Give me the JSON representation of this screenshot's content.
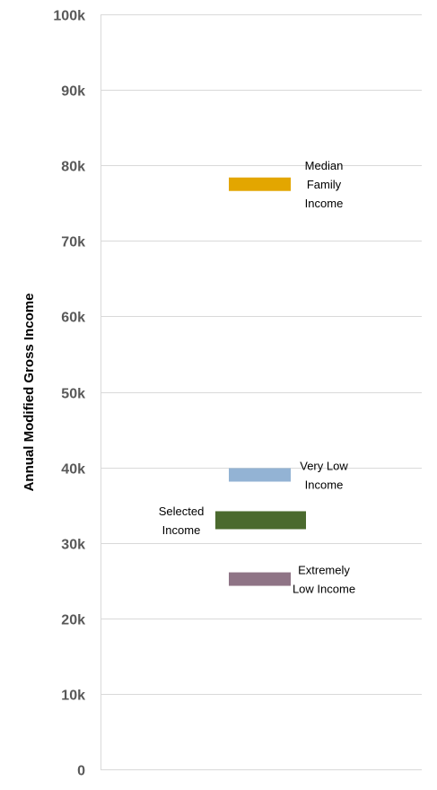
{
  "chart_data": {
    "type": "bar",
    "ylabel": "Annual Modified Gross Income",
    "ylim": [
      0,
      100000
    ],
    "y_ticks": [
      {
        "value": 0,
        "label": "0"
      },
      {
        "value": 10000,
        "label": "10k"
      },
      {
        "value": 20000,
        "label": "20k"
      },
      {
        "value": 30000,
        "label": "30k"
      },
      {
        "value": 40000,
        "label": "40k"
      },
      {
        "value": 50000,
        "label": "50k"
      },
      {
        "value": 60000,
        "label": "60k"
      },
      {
        "value": 70000,
        "label": "70k"
      },
      {
        "value": 80000,
        "label": "80k"
      },
      {
        "value": 90000,
        "label": "90k"
      },
      {
        "value": 100000,
        "label": "100k"
      }
    ],
    "grid": true,
    "markers": [
      {
        "label_lines": [
          "Median",
          "Family",
          "Income"
        ],
        "value": 77500,
        "color": "#e3a600",
        "label_side": "right"
      },
      {
        "label_lines": [
          "Very Low",
          "Income"
        ],
        "value": 39000,
        "color": "#93b3d4",
        "label_side": "right"
      },
      {
        "label_lines": [
          "Selected",
          "Income"
        ],
        "value": 33000,
        "color": "#4b6a2e",
        "label_side": "left"
      },
      {
        "label_lines": [
          "Extremely",
          "Low Income"
        ],
        "value": 25200,
        "color": "#8f7486",
        "label_side": "right"
      }
    ]
  }
}
